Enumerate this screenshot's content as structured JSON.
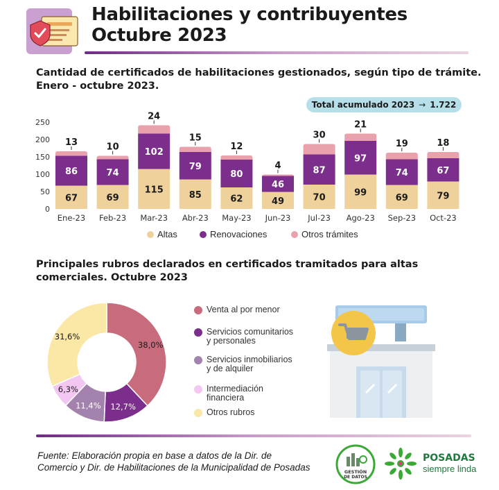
{
  "header": {
    "title_line1": "Habilitaciones y contribuyentes",
    "title_line2": "Octubre 2023",
    "icon": "certificate-shield-icon"
  },
  "section1": {
    "title_line1": "Cantidad de certificados de habilitaciones gestionados, según tipo de trámite.",
    "title_line2": "Enero - octubre 2023.",
    "total_label": "Total acumulado 2023",
    "total_arrow": "→",
    "total_value": "1.722"
  },
  "section2": {
    "title_line1": "Principales rubros declarados en certificados tramitados para altas",
    "title_line2": "comerciales. Octubre 2023"
  },
  "chart_data": [
    {
      "type": "bar",
      "stacked": true,
      "categories": [
        "Ene-23",
        "Feb-23",
        "Mar-23",
        "Abr-23",
        "May-23",
        "Jun-23",
        "Jul-23",
        "Ago-23",
        "Sep-23",
        "Oct-23"
      ],
      "series": [
        {
          "name": "Altas",
          "color": "#efd29b",
          "values": [
            67,
            69,
            115,
            85,
            62,
            49,
            70,
            99,
            69,
            79
          ]
        },
        {
          "name": "Renovaciones",
          "color": "#7b2e8c",
          "values": [
            86,
            74,
            102,
            79,
            80,
            46,
            87,
            97,
            74,
            67
          ]
        },
        {
          "name": "Otros trámites",
          "color": "#e9a1ac",
          "values": [
            13,
            10,
            24,
            15,
            12,
            4,
            30,
            21,
            19,
            18
          ]
        }
      ],
      "ylim": [
        0,
        250
      ],
      "yticks": [
        0,
        50,
        100,
        150,
        200,
        250
      ],
      "legend_position": "bottom",
      "grid": false
    },
    {
      "type": "pie",
      "donut": true,
      "slices": [
        {
          "label_line1": "Venta al por menor",
          "label_line2": "",
          "value": 38.0,
          "display": "38,0%",
          "color": "#c86c7d"
        },
        {
          "label_line1": "Servicios comunitarios",
          "label_line2": "y personales",
          "value": 12.7,
          "display": "12,7%",
          "color": "#7b2e8c"
        },
        {
          "label_line1": "Servicios inmobiliarios",
          "label_line2": "y de alquiler",
          "value": 11.4,
          "display": "11,4%",
          "color": "#a482ae"
        },
        {
          "label_line1": "Intermediación",
          "label_line2": "financiera",
          "value": 6.3,
          "display": "6,3%",
          "color": "#f3c7f1"
        },
        {
          "label_line1": "Otros rubros",
          "label_line2": "",
          "value": 31.6,
          "display": "31,6%",
          "color": "#fbe8a6"
        }
      ],
      "legend_position": "right"
    }
  ],
  "footer": {
    "source_line1": "Fuente: Elaboración propia en base a datos de la Dir. de",
    "source_line2": "Comercio  y Dir. de Habilitaciones de la Municipalidad de Posadas",
    "gestion_line1": "GESTIÓN",
    "gestion_line2": "DE DATOS",
    "posadas_name": "POSADAS",
    "posadas_tag": "siempre linda"
  }
}
